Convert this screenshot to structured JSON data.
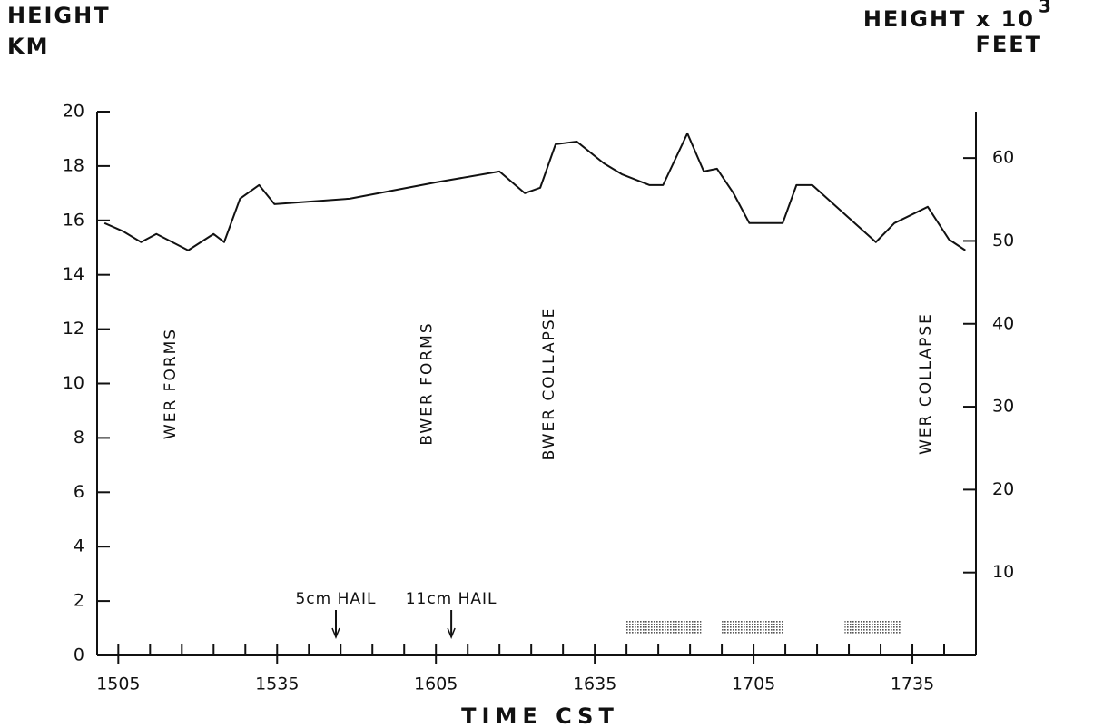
{
  "chart_data": {
    "type": "line",
    "ylabel_lines": [
      "HEIGHT",
      "KM"
    ],
    "y2label": {
      "text": "HEIGHT x 10",
      "superscript": "3",
      "unit": "FEET"
    },
    "xlabel": "TIME CST",
    "xlim": [
      901,
      1067
    ],
    "xticks": [
      {
        "value": 905,
        "label": "1505"
      },
      {
        "value": 935,
        "label": "1535"
      },
      {
        "value": 965,
        "label": "1605"
      },
      {
        "value": 995,
        "label": "1635"
      },
      {
        "value": 1025,
        "label": "1705"
      },
      {
        "value": 1055,
        "label": "1735"
      }
    ],
    "xminor_ticks": [
      905,
      911,
      917,
      923,
      929,
      935,
      941,
      947,
      953,
      959,
      965,
      971,
      977,
      983,
      989,
      995,
      1001,
      1007,
      1013,
      1019,
      1025,
      1031,
      1037,
      1043,
      1049,
      1055,
      1061
    ],
    "ylim": [
      0,
      20
    ],
    "yticks": [
      0,
      2,
      4,
      6,
      8,
      10,
      12,
      14,
      16,
      18,
      20
    ],
    "y2lim": [
      0,
      65.6
    ],
    "y2ticks": [
      10,
      20,
      30,
      40,
      50,
      60
    ],
    "color": "#111111",
    "x": [
      902.4,
      905.9,
      909.3,
      912.2,
      918.2,
      923,
      925,
      928,
      931.6,
      934.5,
      948.7,
      965,
      977,
      981.8,
      984.7,
      987.6,
      991.6,
      996.7,
      1000.1,
      1005.3,
      1007.9,
      1012.5,
      1015.6,
      1018.1,
      1021.2,
      1024.2,
      1030.5,
      1033.1,
      1036.1,
      1048.1,
      1051.6,
      1057.9,
      1061.9,
      1065
    ],
    "values": [
      15.9,
      15.6,
      15.2,
      15.5,
      14.9,
      15.5,
      15.2,
      16.8,
      17.3,
      16.6,
      16.8,
      17.4,
      17.8,
      17.0,
      17.2,
      18.8,
      18.9,
      18.1,
      17.7,
      17.3,
      17.3,
      19.2,
      17.8,
      17.9,
      17.0,
      15.9,
      15.9,
      17.3,
      17.3,
      15.2,
      15.9,
      16.5,
      15.3,
      14.9
    ],
    "annotations": [
      {
        "text": "WER FORMS",
        "x": 914.9
      },
      {
        "text": "BWER FORMS",
        "x": 963.3
      },
      {
        "text": "BWER COLLAPSE",
        "x": 986.4
      },
      {
        "text": "WER COLLAPSE",
        "x": 1057.6
      }
    ],
    "hail": [
      {
        "text": "5cm HAIL",
        "x": 946.1
      },
      {
        "text": "11cm HAIL",
        "x": 967.9
      }
    ],
    "shaded_intervals": [
      [
        1000.7,
        1015.1
      ],
      [
        1019,
        1030.5
      ],
      [
        1042.2,
        1052.8
      ]
    ]
  }
}
